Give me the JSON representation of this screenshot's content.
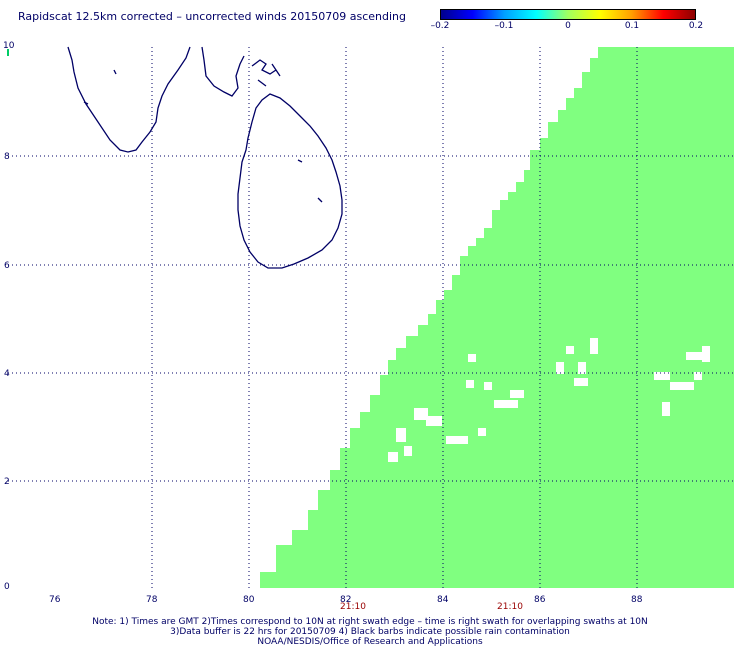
{
  "title": "Rapidscat 12.5km corrected – uncorrected winds 20150709 ascending",
  "colorbar": {
    "ticks": [
      "–0.2",
      "–0.1",
      "0",
      "0.1",
      "0.2"
    ],
    "colors": [
      "#00008c",
      "#0000ff",
      "#00a0ff",
      "#00ffff",
      "#a0ff60",
      "#ffff00",
      "#ffa000",
      "#ff0000",
      "#8c0000"
    ]
  },
  "map": {
    "lon_range": [
      75,
      90
    ],
    "lat_range": [
      0,
      10
    ],
    "lon_ticks": [
      "76",
      "78",
      "80",
      "82",
      "84",
      "86",
      "88"
    ],
    "lat_ticks": [
      "0",
      "2",
      "4",
      "6",
      "8",
      "10"
    ],
    "swath_color": "#80ff80",
    "coast_color": "#000066",
    "swath_times": [
      "21:10",
      "21:10"
    ]
  },
  "notes": [
    "Note: 1) Times are GMT 2)Times correspond to 10N at right swath edge – time is right swath for overlapping swaths at 10N",
    "3)Data buffer is 22 hrs for 20150709 4) Black barbs indicate possible rain contamination",
    "NOAA/NESDIS/Office of Research and Applications"
  ]
}
